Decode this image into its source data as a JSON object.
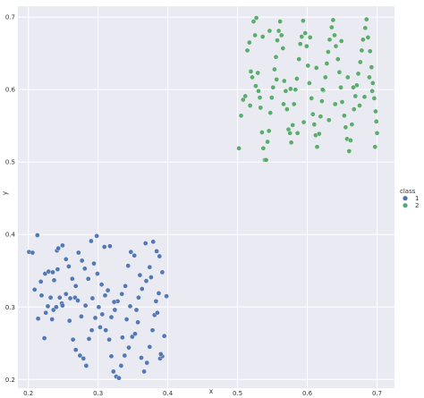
{
  "chart_data": {
    "type": "scatter",
    "xlabel": "x",
    "ylabel": "y",
    "xlim": [
      0.185,
      0.725
    ],
    "ylim": [
      0.188,
      0.715
    ],
    "x_ticks": [
      0.2,
      0.3,
      0.4,
      0.5,
      0.6,
      0.7
    ],
    "y_ticks": [
      0.2,
      0.3,
      0.4,
      0.5,
      0.6,
      0.7
    ],
    "x_tick_labels": [
      "0.2",
      "0.3",
      "0.4",
      "0.5",
      "0.6",
      "0.7"
    ],
    "y_tick_labels": [
      "0.2",
      "0.3",
      "0.4",
      "0.5",
      "0.6",
      "0.7"
    ],
    "grid": true,
    "background": "#eaeaf2",
    "legend": {
      "title": "class",
      "placement": "right"
    },
    "series": [
      {
        "name": "1",
        "color": "#4c72b0",
        "points": [
          [
            0.201,
            0.376
          ],
          [
            0.206,
            0.375
          ],
          [
            0.213,
            0.399
          ],
          [
            0.218,
            0.335
          ],
          [
            0.224,
            0.346
          ],
          [
            0.229,
            0.349
          ],
          [
            0.235,
            0.348
          ],
          [
            0.241,
            0.378
          ],
          [
            0.243,
            0.381
          ],
          [
            0.249,
            0.385
          ],
          [
            0.242,
            0.352
          ],
          [
            0.237,
            0.337
          ],
          [
            0.232,
            0.313
          ],
          [
            0.228,
            0.301
          ],
          [
            0.219,
            0.316
          ],
          [
            0.209,
            0.324
          ],
          [
            0.214,
            0.284
          ],
          [
            0.223,
            0.257
          ],
          [
            0.236,
            0.296
          ],
          [
            0.248,
            0.305
          ],
          [
            0.254,
            0.318
          ],
          [
            0.259,
            0.281
          ],
          [
            0.264,
            0.255
          ],
          [
            0.268,
            0.241
          ],
          [
            0.274,
            0.233
          ],
          [
            0.279,
            0.229
          ],
          [
            0.283,
            0.219
          ],
          [
            0.287,
            0.256
          ],
          [
            0.291,
            0.268
          ],
          [
            0.296,
            0.285
          ],
          [
            0.301,
            0.3
          ],
          [
            0.306,
            0.29
          ],
          [
            0.311,
            0.268
          ],
          [
            0.316,
            0.255
          ],
          [
            0.319,
            0.232
          ],
          [
            0.322,
            0.211
          ],
          [
            0.326,
            0.204
          ],
          [
            0.33,
            0.202
          ],
          [
            0.333,
            0.219
          ],
          [
            0.338,
            0.233
          ],
          [
            0.344,
            0.244
          ],
          [
            0.349,
            0.259
          ],
          [
            0.353,
            0.263
          ],
          [
            0.357,
            0.279
          ],
          [
            0.362,
            0.23
          ],
          [
            0.366,
            0.211
          ],
          [
            0.37,
            0.223
          ],
          [
            0.374,
            0.245
          ],
          [
            0.378,
            0.268
          ],
          [
            0.381,
            0.289
          ],
          [
            0.385,
            0.292
          ],
          [
            0.389,
            0.229
          ],
          [
            0.392,
            0.232
          ],
          [
            0.395,
            0.26
          ],
          [
            0.398,
            0.315
          ],
          [
            0.392,
            0.348
          ],
          [
            0.388,
            0.37
          ],
          [
            0.384,
            0.377
          ],
          [
            0.379,
            0.39
          ],
          [
            0.374,
            0.355
          ],
          [
            0.369,
            0.336
          ],
          [
            0.363,
            0.325
          ],
          [
            0.358,
            0.313
          ],
          [
            0.352,
            0.371
          ],
          [
            0.347,
            0.376
          ],
          [
            0.343,
            0.357
          ],
          [
            0.339,
            0.329
          ],
          [
            0.334,
            0.318
          ],
          [
            0.328,
            0.308
          ],
          [
            0.324,
            0.296
          ],
          [
            0.319,
            0.286
          ],
          [
            0.314,
            0.323
          ],
          [
            0.31,
            0.316
          ],
          [
            0.305,
            0.331
          ],
          [
            0.299,
            0.346
          ],
          [
            0.294,
            0.36
          ],
          [
            0.29,
            0.391
          ],
          [
            0.286,
            0.339
          ],
          [
            0.281,
            0.353
          ],
          [
            0.277,
            0.364
          ],
          [
            0.272,
            0.375
          ],
          [
            0.268,
            0.329
          ],
          [
            0.263,
            0.339
          ],
          [
            0.258,
            0.356
          ],
          [
            0.254,
            0.366
          ],
          [
            0.249,
            0.302
          ],
          [
            0.245,
            0.313
          ],
          [
            0.24,
            0.3
          ],
          [
            0.234,
            0.283
          ],
          [
            0.225,
            0.292
          ],
          [
            0.26,
            0.312
          ],
          [
            0.267,
            0.313
          ],
          [
            0.271,
            0.309
          ],
          [
            0.276,
            0.287
          ],
          [
            0.282,
            0.302
          ],
          [
            0.292,
            0.312
          ],
          [
            0.298,
            0.398
          ],
          [
            0.303,
            0.272
          ],
          [
            0.309,
            0.383
          ],
          [
            0.317,
            0.384
          ],
          [
            0.323,
            0.307
          ],
          [
            0.335,
            0.258
          ],
          [
            0.341,
            0.283
          ],
          [
            0.346,
            0.301
          ],
          [
            0.355,
            0.296
          ],
          [
            0.36,
            0.344
          ],
          [
            0.368,
            0.388
          ],
          [
            0.376,
            0.341
          ],
          [
            0.383,
            0.308
          ],
          [
            0.387,
            0.319
          ],
          [
            0.39,
            0.235
          ]
        ]
      },
      {
        "name": "2",
        "color": "#55a868",
        "points": [
          [
            0.502,
            0.519
          ],
          [
            0.505,
            0.564
          ],
          [
            0.508,
            0.586
          ],
          [
            0.511,
            0.591
          ],
          [
            0.514,
            0.654
          ],
          [
            0.517,
            0.665
          ],
          [
            0.519,
            0.625
          ],
          [
            0.521,
            0.617
          ],
          [
            0.523,
            0.694
          ],
          [
            0.525,
            0.675
          ],
          [
            0.527,
            0.699
          ],
          [
            0.529,
            0.623
          ],
          [
            0.53,
            0.598
          ],
          [
            0.532,
            0.589
          ],
          [
            0.533,
            0.575
          ],
          [
            0.535,
            0.541
          ],
          [
            0.537,
            0.519
          ],
          [
            0.539,
            0.503
          ],
          [
            0.541,
            0.503
          ],
          [
            0.543,
            0.528
          ],
          [
            0.545,
            0.543
          ],
          [
            0.547,
            0.568
          ],
          [
            0.549,
            0.589
          ],
          [
            0.551,
            0.603
          ],
          [
            0.553,
            0.628
          ],
          [
            0.555,
            0.645
          ],
          [
            0.557,
            0.668
          ],
          [
            0.559,
            0.681
          ],
          [
            0.561,
            0.694
          ],
          [
            0.563,
            0.675
          ],
          [
            0.565,
            0.657
          ],
          [
            0.567,
            0.612
          ],
          [
            0.569,
            0.598
          ],
          [
            0.571,
            0.573
          ],
          [
            0.573,
            0.545
          ],
          [
            0.575,
            0.54
          ],
          [
            0.577,
            0.527
          ],
          [
            0.579,
            0.551
          ],
          [
            0.581,
            0.58
          ],
          [
            0.583,
            0.6
          ],
          [
            0.585,
            0.615
          ],
          [
            0.588,
            0.642
          ],
          [
            0.59,
            0.663
          ],
          [
            0.592,
            0.673
          ],
          [
            0.594,
            0.695
          ],
          [
            0.597,
            0.678
          ],
          [
            0.599,
            0.66
          ],
          [
            0.601,
            0.633
          ],
          [
            0.603,
            0.609
          ],
          [
            0.606,
            0.588
          ],
          [
            0.608,
            0.566
          ],
          [
            0.61,
            0.552
          ],
          [
            0.612,
            0.537
          ],
          [
            0.614,
            0.521
          ],
          [
            0.617,
            0.539
          ],
          [
            0.619,
            0.563
          ],
          [
            0.621,
            0.584
          ],
          [
            0.623,
            0.599
          ],
          [
            0.626,
            0.617
          ],
          [
            0.628,
            0.636
          ],
          [
            0.63,
            0.652
          ],
          [
            0.632,
            0.669
          ],
          [
            0.635,
            0.686
          ],
          [
            0.637,
            0.696
          ],
          [
            0.639,
            0.675
          ],
          [
            0.641,
            0.66
          ],
          [
            0.644,
            0.642
          ],
          [
            0.646,
            0.624
          ],
          [
            0.648,
            0.603
          ],
          [
            0.65,
            0.583
          ],
          [
            0.653,
            0.564
          ],
          [
            0.655,
            0.548
          ],
          [
            0.657,
            0.532
          ],
          [
            0.66,
            0.515
          ],
          [
            0.662,
            0.53
          ],
          [
            0.664,
            0.552
          ],
          [
            0.667,
            0.573
          ],
          [
            0.669,
            0.591
          ],
          [
            0.671,
            0.606
          ],
          [
            0.673,
            0.622
          ],
          [
            0.676,
            0.638
          ],
          [
            0.678,
            0.654
          ],
          [
            0.68,
            0.669
          ],
          [
            0.683,
            0.685
          ],
          [
            0.685,
            0.697
          ],
          [
            0.687,
            0.672
          ],
          [
            0.69,
            0.653
          ],
          [
            0.692,
            0.631
          ],
          [
            0.694,
            0.609
          ],
          [
            0.696,
            0.588
          ],
          [
            0.698,
            0.57
          ],
          [
            0.699,
            0.556
          ],
          [
            0.7,
            0.54
          ],
          [
            0.697,
            0.521
          ],
          [
            0.693,
            0.598
          ],
          [
            0.689,
            0.617
          ],
          [
            0.682,
            0.59
          ],
          [
            0.675,
            0.578
          ],
          [
            0.666,
            0.603
          ],
          [
            0.658,
            0.617
          ],
          [
            0.649,
            0.667
          ],
          [
            0.64,
            0.58
          ],
          [
            0.631,
            0.558
          ],
          [
            0.622,
            0.6
          ],
          [
            0.613,
            0.63
          ],
          [
            0.604,
            0.672
          ],
          [
            0.595,
            0.555
          ],
          [
            0.586,
            0.54
          ],
          [
            0.576,
            0.601
          ],
          [
            0.566,
            0.58
          ],
          [
            0.556,
            0.614
          ],
          [
            0.546,
            0.681
          ],
          [
            0.536,
            0.673
          ],
          [
            0.526,
            0.605
          ],
          [
            0.518,
            0.578
          ]
        ]
      }
    ]
  }
}
